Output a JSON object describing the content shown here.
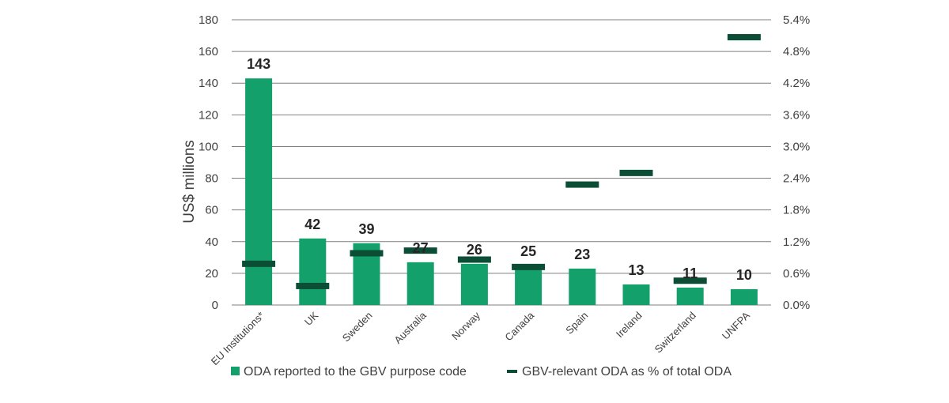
{
  "colors": {
    "bar": "#14a06b",
    "marker": "#0b4d35",
    "grid": "#7f7f7f",
    "text": "#404040",
    "label": "#262626"
  },
  "chart_data": {
    "type": "bar",
    "title": "",
    "xlabel": "",
    "ylabel": "US$ millions",
    "ylim": [
      0,
      180
    ],
    "y2lim": [
      0,
      5.4
    ],
    "yticks": [
      0,
      20,
      40,
      60,
      80,
      100,
      120,
      140,
      160,
      180
    ],
    "y2ticks": [
      "0.0%",
      "0.6%",
      "1.2%",
      "1.8%",
      "2.4%",
      "3.0%",
      "3.6%",
      "4.2%",
      "4.8%",
      "5.4%"
    ],
    "grid": true,
    "legend_position": "bottom",
    "categories": [
      "EU Institutions*",
      "UK",
      "Sweden",
      "Australia",
      "Norway",
      "Canada",
      "Spain",
      "Ireland",
      "Switzerland",
      "UNFPA"
    ],
    "series": [
      {
        "name": "ODA reported to the GBV purpose code",
        "type": "bar",
        "axis": "left",
        "values": [
          143,
          42,
          39,
          27,
          26,
          25,
          23,
          13,
          11,
          10
        ],
        "labels": [
          "143",
          "42",
          "39",
          "27",
          "26",
          "25",
          "23",
          "13",
          "11",
          "10"
        ]
      },
      {
        "name": "GBV-relevant ODA as % of total ODA",
        "type": "marker",
        "axis": "right",
        "values": [
          0.78,
          0.36,
          0.98,
          1.03,
          0.86,
          0.72,
          2.28,
          2.5,
          0.46,
          5.07
        ]
      }
    ]
  }
}
